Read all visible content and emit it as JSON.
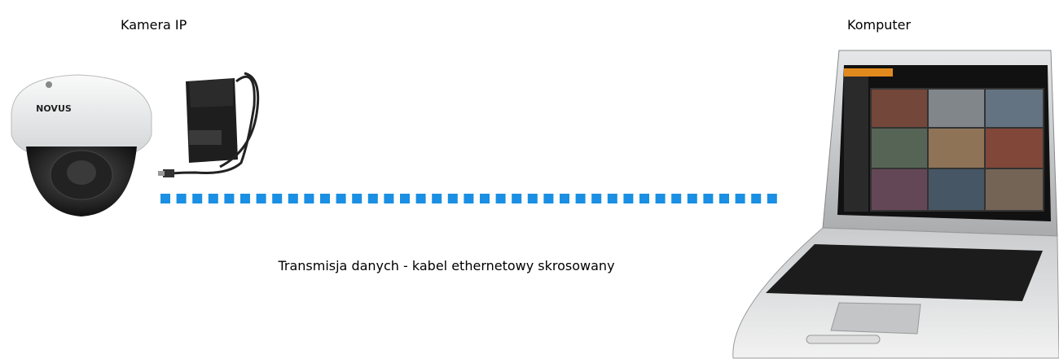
{
  "labels": {
    "camera": "Kamera IP",
    "computer": "Komputer"
  },
  "connection": {
    "label": "Transmisja danych - kabel ethernetowy skrosowany"
  },
  "camera": {
    "brand": "NOVUS"
  }
}
